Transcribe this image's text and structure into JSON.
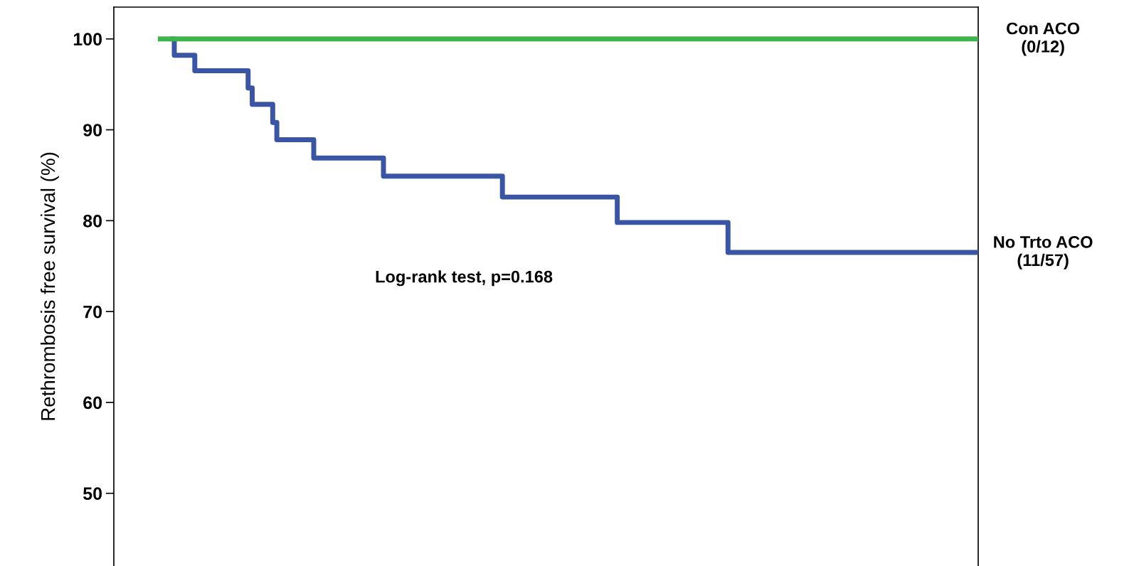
{
  "chart_data": {
    "type": "step",
    "ylabel": "Rethrombosis free survival (%)",
    "categories": [
      null,
      null,
      null,
      null,
      null,
      null,
      null,
      null,
      null,
      null,
      null,
      null,
      null,
      null,
      null,
      null,
      null,
      null,
      null,
      null,
      null,
      null,
      null,
      null,
      null,
      null,
      null,
      null,
      null,
      null,
      null,
      null,
      null,
      null,
      null,
      null,
      null,
      null,
      null,
      null,
      null,
      null,
      null,
      null,
      null,
      null,
      null,
      null,
      null,
      null,
      null,
      null,
      null,
      null,
      null,
      null,
      null,
      null,
      null,
      null,
      null,
      null,
      null,
      null,
      null,
      null,
      null,
      null,
      null,
      null,
      null,
      null,
      null,
      null,
      null,
      null,
      null,
      null,
      null,
      null,
      null,
      null,
      null,
      null,
      null,
      null,
      null,
      null,
      null,
      null,
      null,
      null,
      null,
      null,
      null,
      null,
      null,
      null,
      null,
      null,
      null,
      null,
      null,
      null,
      null,
      null,
      null,
      null,
      null,
      null,
      null,
      null,
      null,
      null,
      null,
      null,
      null,
      null,
      null,
      null,
      null,
      null,
      null,
      null,
      null,
      null,
      null,
      null,
      null,
      null,
      null,
      null,
      null,
      null,
      null,
      null,
      null,
      null,
      null,
      null,
      null,
      null,
      null,
      null,
      null,
      null,
      null,
      null,
      null,
      null,
      null,
      null,
      null,
      null,
      null,
      null,
      null,
      null,
      null,
      null,
      null,
      null,
      null,
      null,
      null,
      null,
      null,
      null,
      null,
      null,
      null,
      null,
      null,
      null,
      null,
      null,
      null,
      null,
      null,
      null,
      null,
      null,
      null,
      null,
      null,
      null,
      null,
      null,
      null,
      null,
      null,
      null,
      null,
      null,
      null,
      null,
      null,
      null,
      null,
      null,
      null
    ],
    "series": [
      {
        "name": "Con ACO\n(0/12)",
        "color": "#3cb54a",
        "values": [
          100,
          100,
          100,
          100,
          100,
          100,
          100,
          100,
          100,
          100,
          100,
          100,
          100,
          100,
          100,
          100,
          100,
          100,
          100,
          100,
          100,
          100,
          100,
          100,
          100,
          100,
          100,
          100,
          100,
          100,
          100,
          100,
          100,
          100,
          100,
          100,
          100,
          100,
          100,
          100,
          100,
          100,
          100,
          100,
          100,
          100,
          100,
          100,
          100,
          100,
          100,
          100,
          100,
          100,
          100,
          100,
          100,
          100,
          100,
          100,
          100,
          100,
          100,
          100,
          100,
          100,
          100,
          100,
          100,
          100,
          100,
          100,
          100,
          100,
          100,
          100,
          100,
          100,
          100,
          100,
          100,
          100,
          100,
          100,
          100,
          100,
          100,
          100,
          100,
          100,
          100,
          100,
          100,
          100,
          100,
          100,
          100,
          100,
          100,
          100,
          100,
          100,
          100,
          100,
          100,
          100,
          100,
          100,
          100,
          100,
          100,
          100,
          100,
          100,
          100,
          100,
          100,
          100,
          100,
          100,
          100,
          100,
          100,
          100,
          100,
          100,
          100,
          100,
          100,
          100,
          100,
          100,
          100,
          100,
          100,
          100,
          100,
          100,
          100,
          100,
          100,
          100,
          100,
          100,
          100,
          100,
          100,
          100,
          100,
          100,
          100,
          100,
          100,
          100,
          100,
          100,
          100,
          100,
          100,
          100,
          100,
          100,
          100,
          100,
          100,
          100,
          100,
          100,
          100,
          100,
          100,
          100,
          100,
          100,
          100,
          100,
          100,
          100,
          100,
          100,
          100,
          100,
          100,
          100,
          100,
          100,
          100,
          100,
          100,
          100,
          100,
          100,
          100,
          100,
          100,
          100,
          100,
          100,
          100,
          100,
          100
        ]
      },
      {
        "name": "No Trto ACO\n(11/57)",
        "color": "#3a55a4",
        "values": [
          null,
          null,
          null,
          100,
          98.2,
          98.2,
          98.2,
          98.2,
          98.2,
          96.5,
          96.5,
          96.5,
          96.5,
          96.5,
          96.5,
          96.5,
          96.5,
          96.5,
          96.5,
          96.5,
          96.5,
          96.5,
          94.6,
          92.8,
          92.8,
          92.8,
          92.8,
          92.8,
          90.8,
          88.9,
          88.9,
          88.9,
          88.9,
          88.9,
          88.9,
          88.9,
          88.9,
          88.9,
          86.9,
          86.9,
          86.9,
          86.9,
          86.9,
          86.9,
          86.9,
          86.9,
          86.9,
          86.9,
          86.9,
          86.9,
          86.9,
          86.9,
          86.9,
          86.9,
          86.9,
          84.9,
          84.9,
          84.9,
          84.9,
          84.9,
          84.9,
          84.9,
          84.9,
          84.9,
          84.9,
          84.9,
          84.9,
          84.9,
          84.9,
          84.9,
          84.9,
          84.9,
          84.9,
          84.9,
          84.9,
          84.9,
          84.9,
          84.9,
          84.9,
          84.9,
          84.9,
          84.9,
          84.9,
          84.9,
          82.6,
          82.6,
          82.6,
          82.6,
          82.6,
          82.6,
          82.6,
          82.6,
          82.6,
          82.6,
          82.6,
          82.6,
          82.6,
          82.6,
          82.6,
          82.6,
          82.6,
          82.6,
          82.6,
          82.6,
          82.6,
          82.6,
          82.6,
          82.6,
          82.6,
          82.6,
          82.6,
          82.6,
          79.8,
          79.8,
          79.8,
          79.8,
          79.8,
          79.8,
          79.8,
          79.8,
          79.8,
          79.8,
          79.8,
          79.8,
          79.8,
          79.8,
          79.8,
          79.8,
          79.8,
          79.8,
          79.8,
          79.8,
          79.8,
          79.8,
          79.8,
          79.8,
          79.8,
          79.8,
          79.8,
          76.5,
          76.5,
          76.5,
          76.5,
          76.5,
          76.5,
          76.5,
          76.5,
          76.5,
          76.5,
          76.5,
          76.5,
          76.5,
          76.5,
          76.5,
          76.5,
          76.5,
          76.5,
          76.5,
          76.5,
          76.5,
          76.5,
          76.5,
          76.5,
          76.5,
          76.5,
          76.5,
          76.5,
          76.5,
          76.5,
          76.5,
          76.5,
          76.5,
          76.5,
          76.5,
          76.5,
          76.5,
          76.5,
          76.5,
          76.5,
          76.5,
          76.5,
          76.5,
          76.5,
          76.5,
          76.5,
          76.5,
          76.5,
          76.5,
          76.5,
          76.5,
          76.5,
          76.5,
          76.5,
          76.5,
          76.5,
          76.5,
          76.5,
          76.5,
          76.5,
          76.5,
          76.5
        ]
      }
    ],
    "ylim": [
      42,
      103.5
    ],
    "yticks": [
      50,
      60,
      70,
      80,
      90,
      100
    ],
    "annotations": [
      "Log-rank test, p=0.168"
    ],
    "tick_labels": "y",
    "grid": false,
    "legend": false
  }
}
